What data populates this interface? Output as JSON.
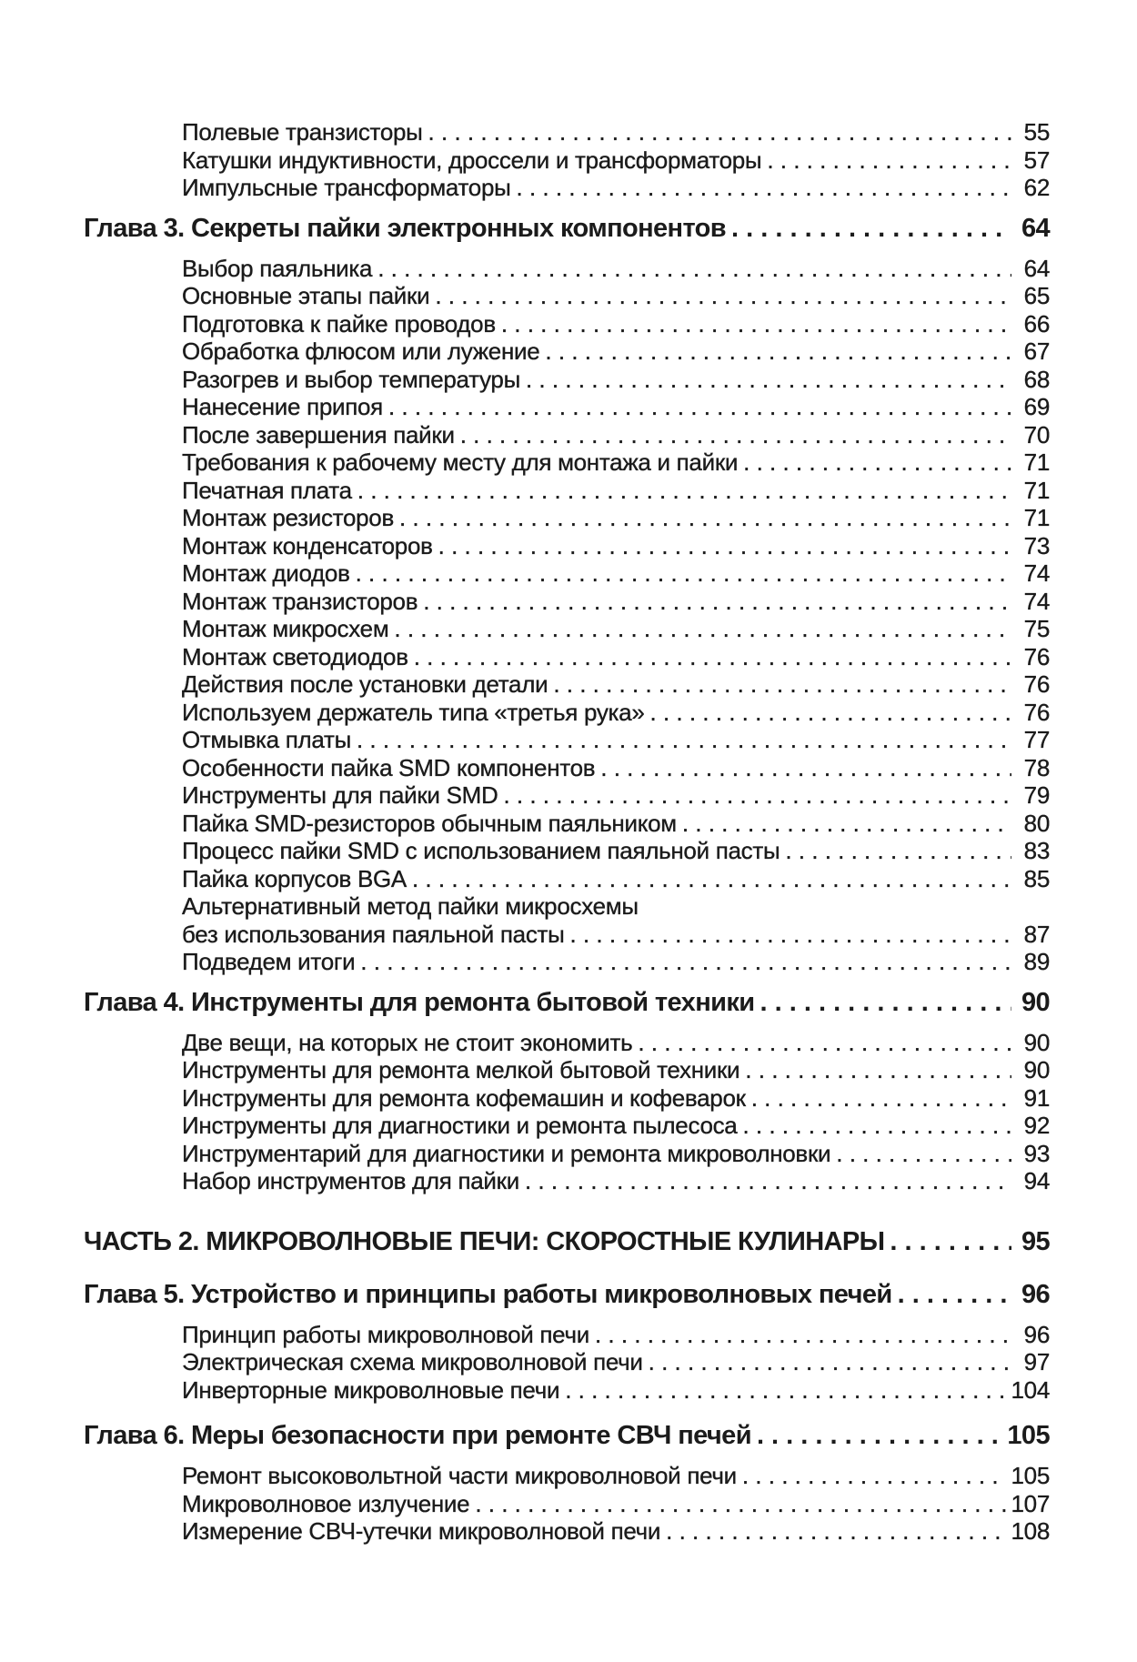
{
  "entries": [
    {
      "level": "sub",
      "title": "Полевые транзисторы",
      "page": "55"
    },
    {
      "level": "sub",
      "title": "Катушки индуктивности, дроссели и трансформаторы",
      "page": "57"
    },
    {
      "level": "sub",
      "title": "Импульсные трансформаторы",
      "page": "62"
    },
    {
      "level": "head",
      "title": "Глава 3. Секреты пайки электронных компонентов",
      "page": "64"
    },
    {
      "level": "sub",
      "title": "Выбор паяльника",
      "page": "64"
    },
    {
      "level": "sub",
      "title": "Основные этапы пайки",
      "page": "65"
    },
    {
      "level": "sub",
      "title": "Подготовка к пайке проводов",
      "page": "66"
    },
    {
      "level": "sub",
      "title": "Обработка флюсом или лужение",
      "page": "67"
    },
    {
      "level": "sub",
      "title": "Разогрев и выбор температуры",
      "page": "68"
    },
    {
      "level": "sub",
      "title": "Нанесение припоя",
      "page": "69"
    },
    {
      "level": "sub",
      "title": "После завершения пайки",
      "page": "70"
    },
    {
      "level": "sub",
      "title": "Требования к рабочему месту для монтажа и пайки",
      "page": "71"
    },
    {
      "level": "sub",
      "title": "Печатная плата",
      "page": "71"
    },
    {
      "level": "sub",
      "title": "Монтаж резисторов",
      "page": "71"
    },
    {
      "level": "sub",
      "title": "Монтаж конденсаторов",
      "page": "73"
    },
    {
      "level": "sub",
      "title": "Монтаж диодов",
      "page": "74"
    },
    {
      "level": "sub",
      "title": "Монтаж транзисторов",
      "page": "74"
    },
    {
      "level": "sub",
      "title": "Монтаж микросхем",
      "page": "75"
    },
    {
      "level": "sub",
      "title": "Монтаж светодиодов",
      "page": "76"
    },
    {
      "level": "sub",
      "title": "Действия после установки детали",
      "page": "76"
    },
    {
      "level": "sub",
      "title": "Используем держатель типа «третья рука»",
      "page": "76"
    },
    {
      "level": "sub",
      "title": "Отмывка платы",
      "page": "77"
    },
    {
      "level": "sub",
      "title": "Особенности пайка SMD компонентов",
      "page": "78"
    },
    {
      "level": "sub",
      "title": "Инструменты для пайки SMD",
      "page": "79"
    },
    {
      "level": "sub",
      "title": "Пайка SMD-резисторов обычным паяльником",
      "page": "80"
    },
    {
      "level": "sub",
      "title": "Процесс пайки SMD с использованием паяльной пасты",
      "page": "83"
    },
    {
      "level": "sub",
      "title": "Пайка корпусов BGA",
      "page": "85"
    },
    {
      "level": "sub2",
      "title": "Альтернативный метод пайки микросхемы",
      "title2": "без использования паяльной пасты",
      "page": "87"
    },
    {
      "level": "sub",
      "title": "Подведем итоги",
      "page": "89"
    },
    {
      "level": "head",
      "title": "Глава 4. Инструменты для ремонта бытовой техники",
      "page": "90"
    },
    {
      "level": "sub",
      "title": "Две вещи, на которых не стоит экономить",
      "page": "90"
    },
    {
      "level": "sub",
      "title": "Инструменты для ремонта мелкой бытовой техники",
      "page": "90"
    },
    {
      "level": "sub",
      "title": "Инструменты для ремонта кофемашин и кофеварок",
      "page": "91"
    },
    {
      "level": "sub",
      "title": "Инструменты для диагностики и ремонта пылесоса",
      "page": "92"
    },
    {
      "level": "sub",
      "title": "Инструментарий для диагностики и ремонта микроволновки",
      "page": "93"
    },
    {
      "level": "sub",
      "title": "Набор инструментов для пайки",
      "page": "94"
    },
    {
      "level": "part",
      "title": "ЧАСТЬ 2. МИКРОВОЛНОВЫЕ ПЕЧИ: СКОРОСТНЫЕ КУЛИНАРЫ",
      "page": "95"
    },
    {
      "level": "head",
      "title": "Глава 5. Устройство и принципы работы микроволновых печей",
      "page": "96"
    },
    {
      "level": "sub",
      "title": "Принцип работы микроволновой печи",
      "page": "96"
    },
    {
      "level": "sub",
      "title": "Электрическая схема микроволновой печи",
      "page": "97"
    },
    {
      "level": "sub",
      "title": "Инверторные микроволновые печи",
      "page": "104"
    },
    {
      "level": "head gap",
      "title": "Глава 6. Меры безопасности при ремонте СВЧ печей",
      "page": "105"
    },
    {
      "level": "sub",
      "title": "Ремонт высоковольтной части микроволновой печи",
      "page": "105"
    },
    {
      "level": "sub",
      "title": "Микроволновое излучение",
      "page": "107"
    },
    {
      "level": "sub",
      "title": "Измерение СВЧ-утечки микроволновой печи",
      "page": "108"
    }
  ]
}
